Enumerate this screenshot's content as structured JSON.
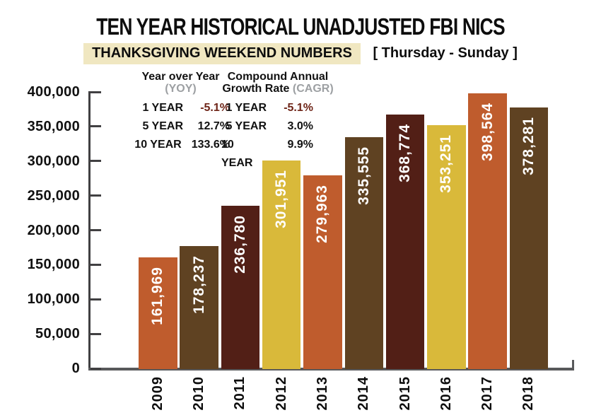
{
  "title": "TEN YEAR HISTORICAL UNADJUSTED FBI NICS",
  "subtitle": {
    "highlight": "THANKSGIVING WEEKEND NUMBERS",
    "range": "[ Thursday - Sunday ]"
  },
  "stats": {
    "yoy": {
      "title": "Year over Year",
      "abbr": "(YOY)",
      "rows": [
        {
          "label": "1 YEAR",
          "value": "-5.1%",
          "negative": true
        },
        {
          "label": "5 YEAR",
          "value": "12.7%",
          "negative": false
        },
        {
          "label": "10 YEAR",
          "value": "133.6%",
          "negative": false
        }
      ]
    },
    "cagr": {
      "title_line1": "Compound Annual",
      "title_line2": "Growth Rate",
      "abbr": "(CAGR)",
      "rows": [
        {
          "label": "1 YEAR",
          "value": "-5.1%",
          "negative": true
        },
        {
          "label": "5 YEAR",
          "value": "3.0%",
          "negative": false
        },
        {
          "label": "10 YEAR",
          "value": "9.9%",
          "negative": false
        }
      ]
    }
  },
  "chart_data": {
    "type": "bar",
    "title": "TEN YEAR HISTORICAL UNADJUSTED FBI NICS",
    "subtitle": "THANKSGIVING WEEKEND NUMBERS [ Thursday - Sunday ]",
    "categories": [
      "2009",
      "2010",
      "2011",
      "2012",
      "2013",
      "2014",
      "2015",
      "2016",
      "2017",
      "2018"
    ],
    "values": [
      161969,
      178237,
      236780,
      301951,
      279963,
      335555,
      368774,
      353251,
      398564,
      378281
    ],
    "bar_labels": [
      "161,969",
      "178,237",
      "236,780",
      "301,951",
      "279,963",
      "335,555",
      "368,774",
      "353,251",
      "398,564",
      "378,281"
    ],
    "xlabel": "",
    "ylabel": "",
    "ylim": [
      0,
      400000
    ],
    "ytick_step": 50000,
    "ytick_labels": [
      "0",
      "50,000",
      "100,000",
      "150,000",
      "200,000",
      "250,000",
      "300,000",
      "350,000",
      "400,000"
    ],
    "grid": false,
    "legend_position": "none",
    "bar_color_cycle": [
      "#bf5c2d",
      "#5f4222",
      "#521f16",
      "#d9b93a"
    ],
    "bar_label_color": "#ffffff"
  },
  "colors": {
    "negative_value": "#6e2417",
    "abbr_gray": "#9da0a3",
    "highlight_bg": "#f0e7c1",
    "axis": "#414042",
    "baseline": "#58595b"
  }
}
